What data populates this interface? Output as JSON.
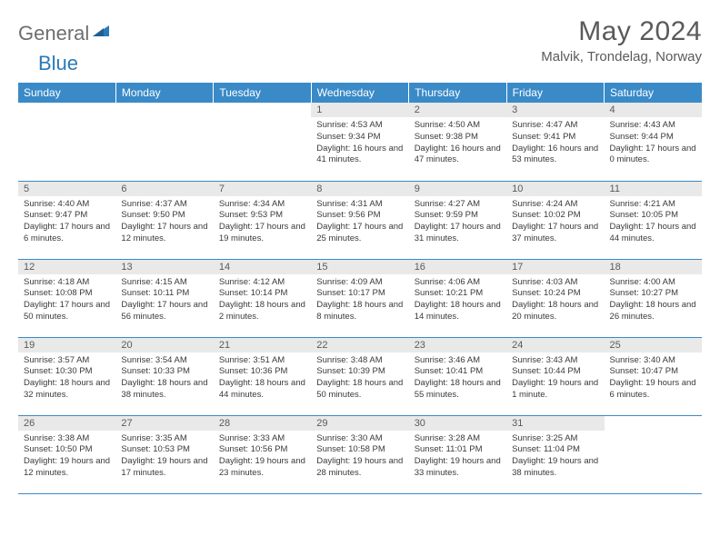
{
  "brand": {
    "part1": "General",
    "part2": "Blue"
  },
  "title": "May 2024",
  "location": "Malvik, Trondelag, Norway",
  "style": {
    "header_bg": "#3a8ac8",
    "header_fg": "#ffffff",
    "daynum_bg": "#e9e9e9",
    "text_color": "#3a3a3a",
    "rule_color": "#3a8ac8",
    "page_bg": "#ffffff",
    "title_color": "#5a5a5a",
    "font_family": "Arial, Helvetica, sans-serif",
    "title_fontsize_pt": 22,
    "location_fontsize_pt": 11,
    "header_fontsize_pt": 9,
    "body_fontsize_pt": 7
  },
  "weekdays": [
    "Sunday",
    "Monday",
    "Tuesday",
    "Wednesday",
    "Thursday",
    "Friday",
    "Saturday"
  ],
  "days": [
    null,
    null,
    null,
    {
      "n": "1",
      "sr": "4:53 AM",
      "ss": "9:34 PM",
      "dl": "16 hours and 41 minutes."
    },
    {
      "n": "2",
      "sr": "4:50 AM",
      "ss": "9:38 PM",
      "dl": "16 hours and 47 minutes."
    },
    {
      "n": "3",
      "sr": "4:47 AM",
      "ss": "9:41 PM",
      "dl": "16 hours and 53 minutes."
    },
    {
      "n": "4",
      "sr": "4:43 AM",
      "ss": "9:44 PM",
      "dl": "17 hours and 0 minutes."
    },
    {
      "n": "5",
      "sr": "4:40 AM",
      "ss": "9:47 PM",
      "dl": "17 hours and 6 minutes."
    },
    {
      "n": "6",
      "sr": "4:37 AM",
      "ss": "9:50 PM",
      "dl": "17 hours and 12 minutes."
    },
    {
      "n": "7",
      "sr": "4:34 AM",
      "ss": "9:53 PM",
      "dl": "17 hours and 19 minutes."
    },
    {
      "n": "8",
      "sr": "4:31 AM",
      "ss": "9:56 PM",
      "dl": "17 hours and 25 minutes."
    },
    {
      "n": "9",
      "sr": "4:27 AM",
      "ss": "9:59 PM",
      "dl": "17 hours and 31 minutes."
    },
    {
      "n": "10",
      "sr": "4:24 AM",
      "ss": "10:02 PM",
      "dl": "17 hours and 37 minutes."
    },
    {
      "n": "11",
      "sr": "4:21 AM",
      "ss": "10:05 PM",
      "dl": "17 hours and 44 minutes."
    },
    {
      "n": "12",
      "sr": "4:18 AM",
      "ss": "10:08 PM",
      "dl": "17 hours and 50 minutes."
    },
    {
      "n": "13",
      "sr": "4:15 AM",
      "ss": "10:11 PM",
      "dl": "17 hours and 56 minutes."
    },
    {
      "n": "14",
      "sr": "4:12 AM",
      "ss": "10:14 PM",
      "dl": "18 hours and 2 minutes."
    },
    {
      "n": "15",
      "sr": "4:09 AM",
      "ss": "10:17 PM",
      "dl": "18 hours and 8 minutes."
    },
    {
      "n": "16",
      "sr": "4:06 AM",
      "ss": "10:21 PM",
      "dl": "18 hours and 14 minutes."
    },
    {
      "n": "17",
      "sr": "4:03 AM",
      "ss": "10:24 PM",
      "dl": "18 hours and 20 minutes."
    },
    {
      "n": "18",
      "sr": "4:00 AM",
      "ss": "10:27 PM",
      "dl": "18 hours and 26 minutes."
    },
    {
      "n": "19",
      "sr": "3:57 AM",
      "ss": "10:30 PM",
      "dl": "18 hours and 32 minutes."
    },
    {
      "n": "20",
      "sr": "3:54 AM",
      "ss": "10:33 PM",
      "dl": "18 hours and 38 minutes."
    },
    {
      "n": "21",
      "sr": "3:51 AM",
      "ss": "10:36 PM",
      "dl": "18 hours and 44 minutes."
    },
    {
      "n": "22",
      "sr": "3:48 AM",
      "ss": "10:39 PM",
      "dl": "18 hours and 50 minutes."
    },
    {
      "n": "23",
      "sr": "3:46 AM",
      "ss": "10:41 PM",
      "dl": "18 hours and 55 minutes."
    },
    {
      "n": "24",
      "sr": "3:43 AM",
      "ss": "10:44 PM",
      "dl": "19 hours and 1 minute."
    },
    {
      "n": "25",
      "sr": "3:40 AM",
      "ss": "10:47 PM",
      "dl": "19 hours and 6 minutes."
    },
    {
      "n": "26",
      "sr": "3:38 AM",
      "ss": "10:50 PM",
      "dl": "19 hours and 12 minutes."
    },
    {
      "n": "27",
      "sr": "3:35 AM",
      "ss": "10:53 PM",
      "dl": "19 hours and 17 minutes."
    },
    {
      "n": "28",
      "sr": "3:33 AM",
      "ss": "10:56 PM",
      "dl": "19 hours and 23 minutes."
    },
    {
      "n": "29",
      "sr": "3:30 AM",
      "ss": "10:58 PM",
      "dl": "19 hours and 28 minutes."
    },
    {
      "n": "30",
      "sr": "3:28 AM",
      "ss": "11:01 PM",
      "dl": "19 hours and 33 minutes."
    },
    {
      "n": "31",
      "sr": "3:25 AM",
      "ss": "11:04 PM",
      "dl": "19 hours and 38 minutes."
    },
    null
  ],
  "labels": {
    "sunrise": "Sunrise:",
    "sunset": "Sunset:",
    "daylight": "Daylight:"
  }
}
